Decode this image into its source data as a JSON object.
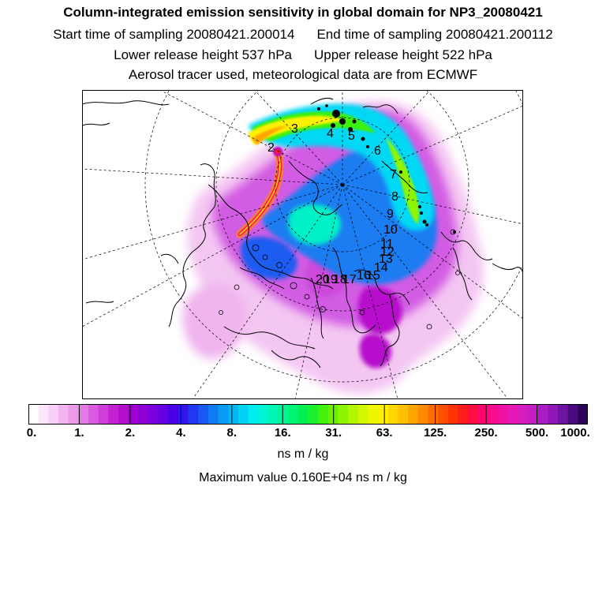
{
  "header": {
    "title": "Column-integrated emission sensitivity in global domain for NP3_20080421",
    "start_time": "Start time of sampling 20080421.200014",
    "end_time": "End time of sampling 20080421.200112",
    "lower_height": "Lower release height  537 hPa",
    "upper_height": "Upper release height  522 hPa",
    "tracer_note": "Aerosol tracer used, meteorological data are from ECMWF"
  },
  "map": {
    "trajectory_labels": [
      "2",
      "3",
      "4",
      "5",
      "6",
      "7",
      "8",
      "9",
      "10",
      "11",
      "12",
      "13",
      "14",
      "15",
      "16",
      "17",
      "18",
      "19",
      "20"
    ]
  },
  "colorbar": {
    "tick_labels": [
      "0.",
      "1.",
      "2.",
      "4.",
      "8.",
      "16.",
      "31.",
      "63.",
      "125.",
      "250.",
      "500.",
      "1000."
    ],
    "colors": [
      "#ffffff",
      "#fde6fb",
      "#f8cff5",
      "#f2b5f0",
      "#ec98eb",
      "#e37ae6",
      "#d95bdf",
      "#cf3ed9",
      "#c223d2",
      "#b40ece",
      "#a000cf",
      "#8e00d6",
      "#7a00dd",
      "#6200e3",
      "#4800e8",
      "#3016ed",
      "#2137f0",
      "#1959f2",
      "#107bf4",
      "#0a99f5",
      "#05b6f5",
      "#02d2f4",
      "#00ecf0",
      "#00f5d6",
      "#00f6b6",
      "#00f594",
      "#00f372",
      "#00f050",
      "#1cf02c",
      "#43f00e",
      "#69f200",
      "#8ff400",
      "#b2f600",
      "#d3f700",
      "#eef700",
      "#fff000",
      "#ffd800",
      "#ffbf00",
      "#ffa500",
      "#ff8a00",
      "#ff6d00",
      "#ff5000",
      "#ff3400",
      "#ff1c1c",
      "#ff0c42",
      "#ff066a",
      "#fa0c8c",
      "#f012a4",
      "#e418b4",
      "#d51cbe",
      "#c31dc4",
      "#ac1cc4",
      "#8e18b8",
      "#6e12a2",
      "#4c0a80",
      "#2e0458"
    ]
  },
  "units": "ns m / kg",
  "max_value": "Maximum value  0.160E+04 ns m / kg"
}
